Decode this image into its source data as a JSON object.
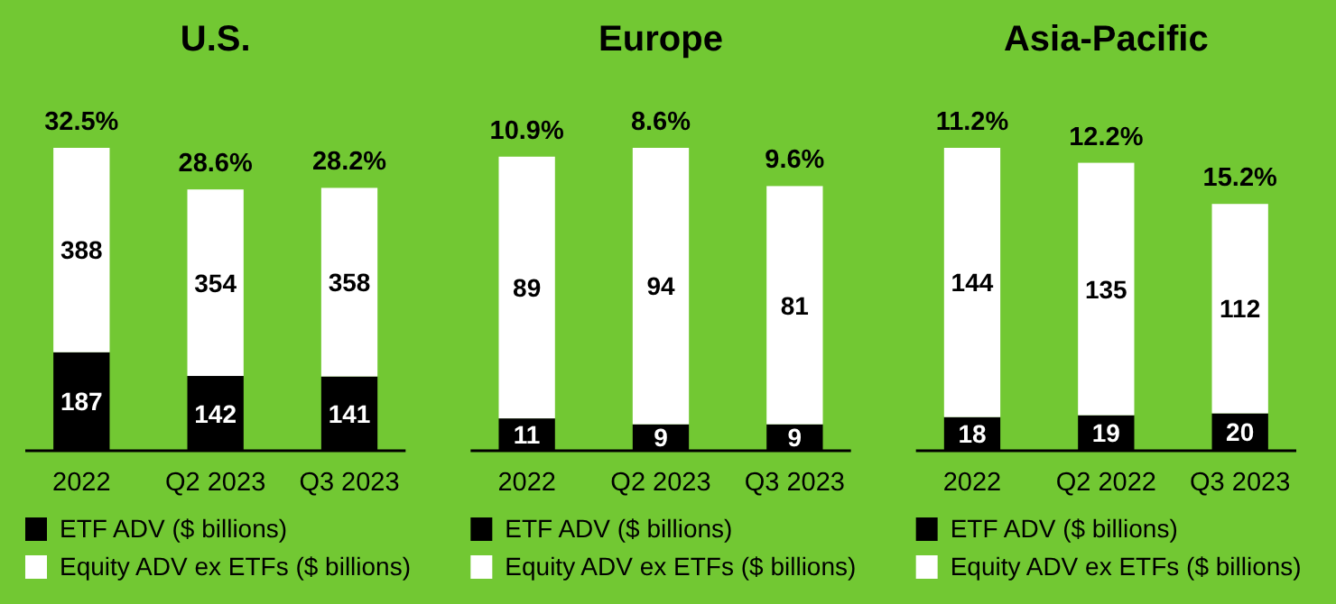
{
  "chart_data": [
    {
      "type": "bar",
      "stacked": true,
      "title": "U.S.",
      "categories": [
        "2022",
        "Q2 2023",
        "Q3 2023"
      ],
      "series": [
        {
          "name": "ETF ADV ($ billions)",
          "color": "#000000",
          "values": [
            187,
            142,
            141
          ]
        },
        {
          "name": "Equity ADV ex ETFs ($ billions)",
          "color": "#ffffff",
          "values": [
            388,
            354,
            358
          ]
        }
      ],
      "tick_labels": "x",
      "data_labels": true,
      "legend": "bottom",
      "annotations": [
        {
          "text": "32.5%",
          "x": "2022",
          "y": 575
        },
        {
          "text": "28.6%",
          "x": "Q2 2023",
          "y": 496
        },
        {
          "text": "28.2%",
          "x": "Q3 2023",
          "y": 499
        }
      ]
    },
    {
      "type": "bar",
      "stacked": true,
      "title": "Europe",
      "categories": [
        "2022",
        "Q2 2023",
        "Q3 2023"
      ],
      "series": [
        {
          "name": "ETF ADV ($ billions)",
          "color": "#000000",
          "values": [
            11,
            9,
            9
          ]
        },
        {
          "name": "Equity ADV ex ETFs ($ billions)",
          "color": "#ffffff",
          "values": [
            89,
            94,
            81
          ]
        }
      ],
      "tick_labels": "x",
      "data_labels": true,
      "legend": "bottom",
      "annotations": [
        {
          "text": "10.9%",
          "x": "2022",
          "y": 100
        },
        {
          "text": "8.6%",
          "x": "Q2 2023",
          "y": 103
        },
        {
          "text": "9.6%",
          "x": "Q3 2023",
          "y": 90
        }
      ]
    },
    {
      "type": "bar",
      "stacked": true,
      "title": "Asia-Pacific",
      "categories": [
        "2022",
        "Q2 2022",
        "Q3 2023"
      ],
      "series": [
        {
          "name": "ETF ADV ($ billions)",
          "color": "#000000",
          "values": [
            18,
            19,
            20
          ]
        },
        {
          "name": "Equity ADV ex ETFs ($ billions)",
          "color": "#ffffff",
          "values": [
            144,
            135,
            112
          ]
        }
      ],
      "tick_labels": "x",
      "data_labels": true,
      "legend": "bottom",
      "annotations": [
        {
          "text": "11.2%",
          "x": "2022",
          "y": 162
        },
        {
          "text": "12.2%",
          "x": "Q2 2022",
          "y": 154
        },
        {
          "text": "15.2%",
          "x": "Q3 2023",
          "y": 132
        }
      ]
    }
  ]
}
